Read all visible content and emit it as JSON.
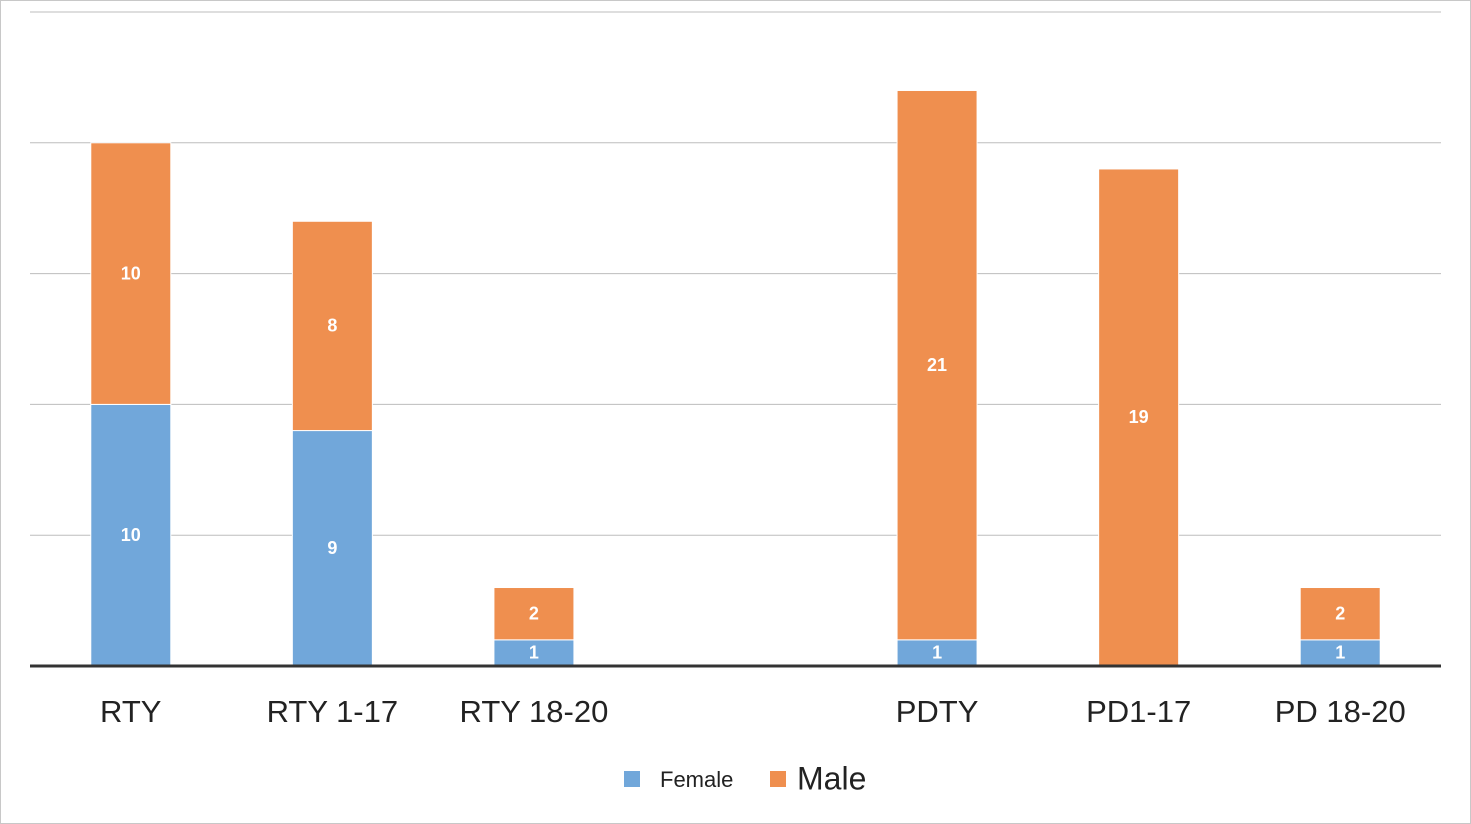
{
  "chart_data": {
    "type": "bar",
    "stacked": true,
    "categories": [
      "RTY",
      "RTY 1-17",
      "RTY 18-20",
      null,
      "PDTY",
      "PD1-17",
      "PD 18-20"
    ],
    "series": [
      {
        "name": "Female",
        "color": "#71a7da",
        "values": [
          10,
          9,
          1,
          null,
          1,
          null,
          1
        ]
      },
      {
        "name": "Male",
        "color": "#ef8f4f",
        "values": [
          10,
          8,
          2,
          null,
          21,
          19,
          2
        ]
      }
    ],
    "ylim": [
      0,
      25
    ],
    "yticks": [
      0,
      5,
      10,
      15,
      20,
      25
    ],
    "grid": true,
    "legend": "bottom"
  }
}
